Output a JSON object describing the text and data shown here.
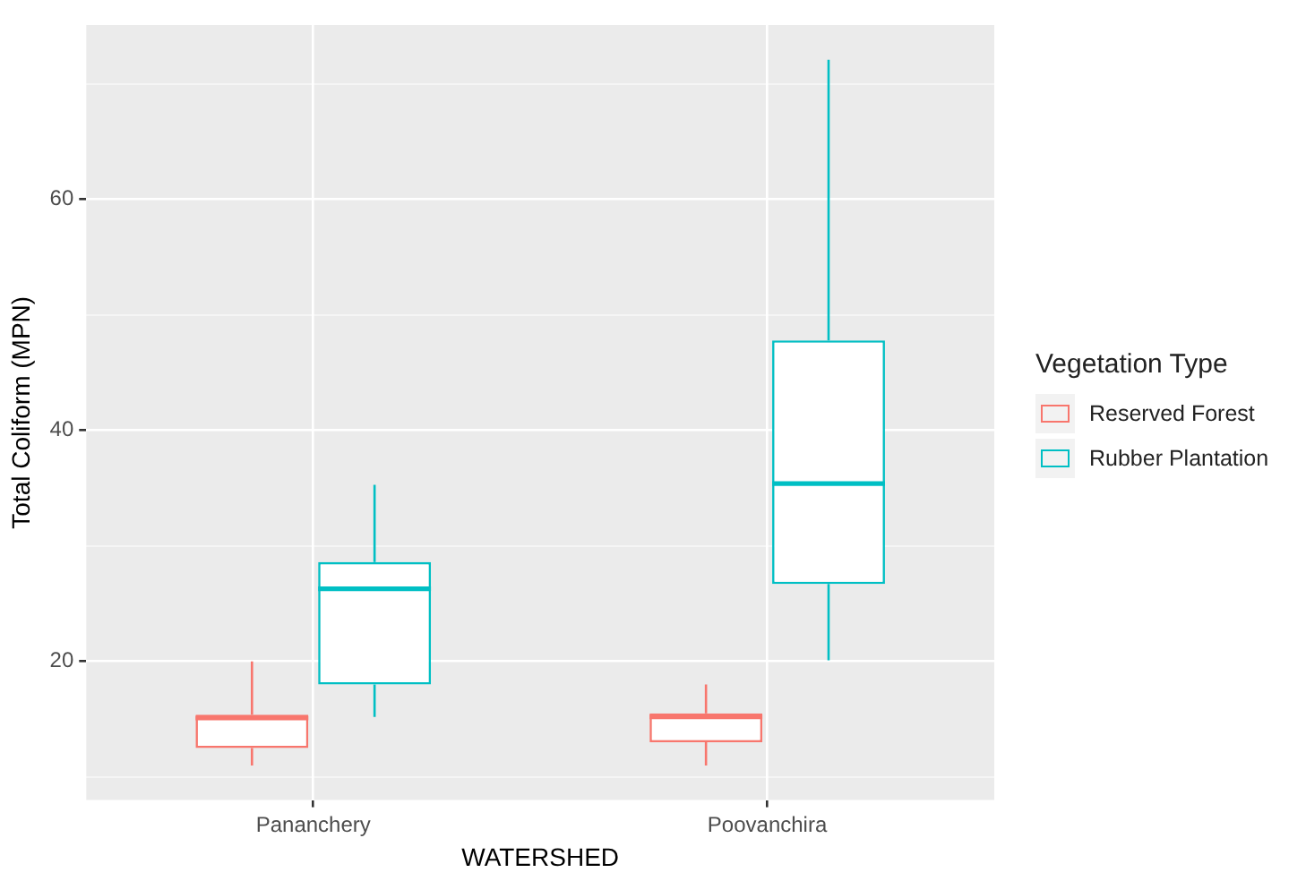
{
  "chart_data": {
    "type": "box",
    "xlabel": "WATERSHED",
    "ylabel": "Total Coliform (MPN)",
    "legend_title": "Vegetation Type",
    "legend": "right",
    "grid": true,
    "categories": [
      "Pananchery",
      "Poovanchira"
    ],
    "ylim": [
      8,
      75.1
    ],
    "yticks": [
      {
        "value": 10,
        "label": null
      },
      20,
      {
        "value": 30,
        "label": null
      },
      40,
      {
        "value": 50,
        "label": null
      },
      60,
      {
        "value": 70,
        "label": null
      }
    ],
    "series": [
      {
        "name": "Reserved Forest",
        "color": "#f8766d",
        "boxes": [
          {
            "low": 11,
            "q1": 12.5,
            "median": 15.1,
            "q3": 15.4,
            "high": 20
          },
          {
            "low": 11,
            "q1": 13,
            "median": 15.2,
            "q3": 15.5,
            "high": 18
          }
        ]
      },
      {
        "name": "Rubber Plantation",
        "color": "#00bfc4",
        "boxes": [
          {
            "low": 15.2,
            "q1": 18,
            "median": 26.3,
            "q3": 28.6,
            "high": 35.3
          },
          {
            "low": 20.1,
            "q1": 26.7,
            "median": 35.4,
            "q3": 47.8,
            "high": 72.1
          }
        ]
      }
    ]
  }
}
